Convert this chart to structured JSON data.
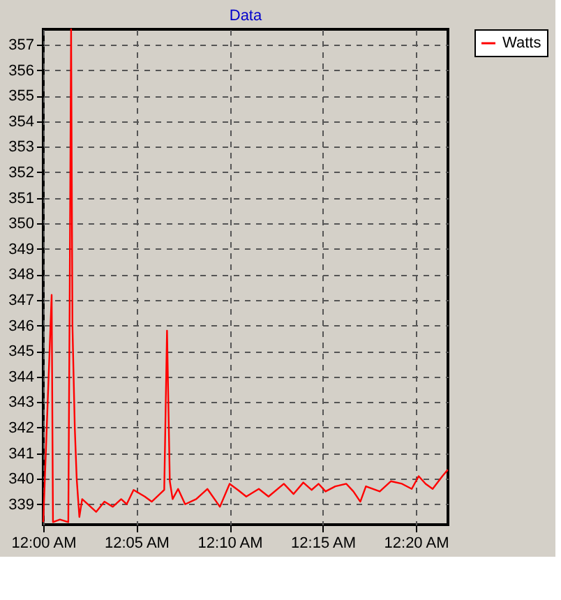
{
  "chart_data": {
    "type": "line",
    "title": "Data",
    "x": [
      0,
      0.0075,
      0.0087,
      0.0149,
      0.0224,
      0.0236,
      0.0249,
      0.0261,
      0.0282,
      0.0299,
      0.0323,
      0.0348,
      0.0398,
      0.0473,
      0.0547,
      0.0622,
      0.0697,
      0.0746,
      0.0808,
      0.0908,
      0.097,
      0.1082,
      0.1107,
      0.1132,
      0.1157,
      0.1206,
      0.1269,
      0.1368,
      0.1468,
      0.158,
      0.1667,
      0.1741,
      0.1816,
      0.1928,
      0.2015,
      0.2152,
      0.2239,
      0.2326,
      0.24,
      0.2463,
      0.2525,
      0.2612,
      0.2711,
      0.2774,
      0.2836,
      0.2886,
      0.301,
      0.3109,
      0.3209,
      0.3296,
      0.3358,
      0.342,
      0.3483,
      0.357,
      0.3619
    ],
    "series": [
      {
        "name": "Watts",
        "color": "#ff0000",
        "values": [
          338.3,
          347.2,
          338.3,
          338.4,
          338.3,
          346.8,
          357.6,
          346.0,
          342.0,
          340.0,
          338.5,
          339.2,
          339.0,
          338.7,
          339.1,
          338.9,
          339.2,
          339.0,
          339.56,
          339.3,
          339.1,
          339.56,
          345.8,
          339.9,
          339.2,
          339.6,
          339.0,
          339.2,
          339.6,
          338.9,
          339.8,
          339.56,
          339.3,
          339.6,
          339.3,
          339.8,
          339.4,
          339.85,
          339.56,
          339.8,
          339.5,
          339.7,
          339.8,
          339.5,
          339.1,
          339.7,
          339.5,
          339.9,
          339.8,
          339.6,
          340.1,
          339.8,
          339.6,
          340.1,
          340.35
        ]
      }
    ],
    "xlim": [
      0,
      0.362
    ],
    "xticks": [
      {
        "value": 0,
        "label": "12:00 AM"
      },
      {
        "value": 0.0833,
        "label": "12:05 AM"
      },
      {
        "value": 0.1667,
        "label": "12:10 AM"
      },
      {
        "value": 0.25,
        "label": "12:15 AM"
      },
      {
        "value": 0.3333,
        "label": "12:20 AM"
      }
    ],
    "ylim": [
      338.2,
      357.6
    ],
    "yticks": [
      339,
      340,
      341,
      342,
      343,
      344,
      345,
      346,
      347,
      348,
      349,
      350,
      351,
      352,
      353,
      354,
      355,
      356,
      357
    ],
    "grid": true,
    "legend": "top right",
    "line_style": "solid"
  }
}
